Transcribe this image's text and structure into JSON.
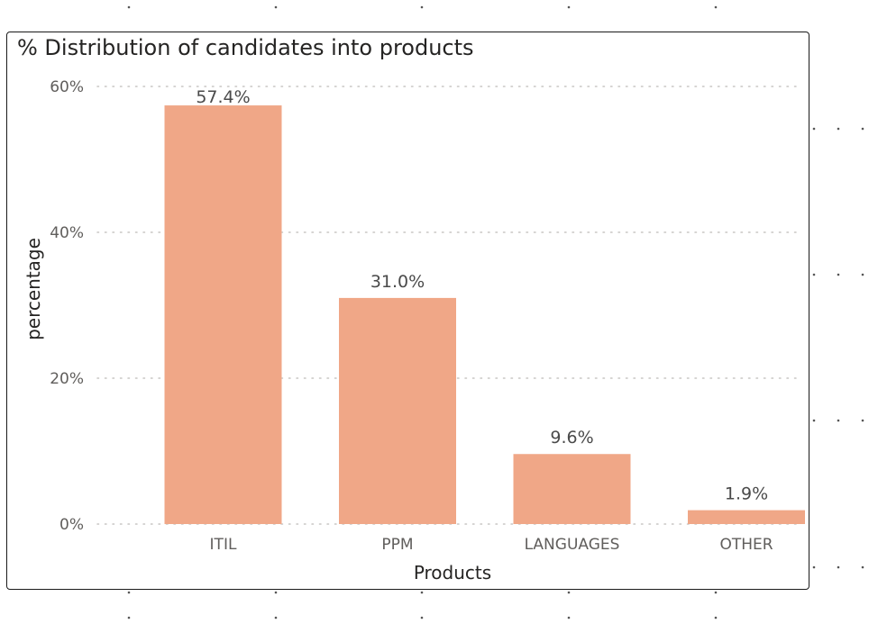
{
  "chart_data": {
    "type": "bar",
    "title": "% Distribution of candidates into products",
    "xlabel": "Products",
    "ylabel": "percentage",
    "categories": [
      "ITIL",
      "PPM",
      "LANGUAGES",
      "OTHER"
    ],
    "values": [
      57.4,
      31.0,
      9.6,
      1.9
    ],
    "data_labels": [
      "57.4%",
      "31.0%",
      "9.6%",
      "1.9%"
    ],
    "y_ticks": [
      {
        "value": 0,
        "label": "0%"
      },
      {
        "value": 20,
        "label": "20%"
      },
      {
        "value": 40,
        "label": "40%"
      },
      {
        "value": 60,
        "label": "60%"
      }
    ],
    "ylim": [
      0,
      60
    ],
    "grid": true,
    "legend": "none",
    "bar_color": "#F0A787",
    "grid_color": "#c8c6c4"
  }
}
